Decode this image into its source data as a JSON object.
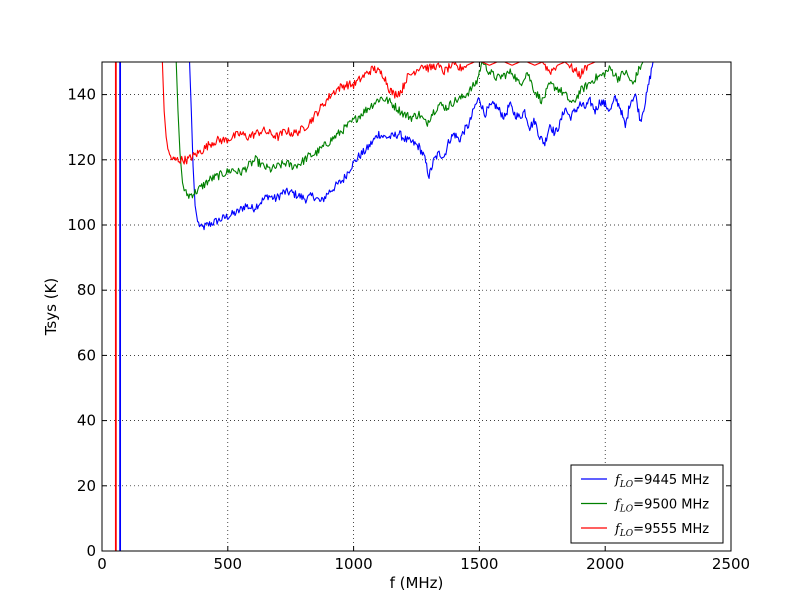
{
  "chart_data": {
    "type": "line",
    "title": "",
    "xlabel": "f (MHz)",
    "ylabel": "Tsys (K)",
    "xlim": [
      0,
      2500
    ],
    "ylim": [
      0,
      150
    ],
    "xticks": [
      0,
      500,
      1000,
      1500,
      2000,
      2500
    ],
    "yticks": [
      0,
      20,
      40,
      60,
      80,
      100,
      120,
      140
    ],
    "xtick_labels": [
      "0",
      "500",
      "1000",
      "1500",
      "2000",
      "2500"
    ],
    "ytick_labels": [
      "0",
      "20",
      "40",
      "60",
      "80",
      "100",
      "120",
      "140"
    ],
    "grid": true,
    "legend_position": "lower-right",
    "vertical_lines": [
      {
        "x": 55,
        "color": "#ff0000"
      },
      {
        "x": 72,
        "color": "#0000ff"
      }
    ],
    "series": [
      {
        "name": "=9445 MHz",
        "legend_prefix": "f",
        "legend_sub": "LO",
        "color": "#0000ff",
        "points": [
          [
            348,
            150
          ],
          [
            355,
            135
          ],
          [
            362,
            118
          ],
          [
            370,
            106
          ],
          [
            380,
            101
          ],
          [
            395,
            99
          ],
          [
            420,
            100
          ],
          [
            450,
            101
          ],
          [
            480,
            102
          ],
          [
            510,
            103
          ],
          [
            540,
            104
          ],
          [
            570,
            106
          ],
          [
            600,
            105
          ],
          [
            630,
            107
          ],
          [
            660,
            109
          ],
          [
            690,
            108
          ],
          [
            720,
            110
          ],
          [
            750,
            110
          ],
          [
            780,
            109
          ],
          [
            810,
            108
          ],
          [
            840,
            109
          ],
          [
            870,
            107
          ],
          [
            900,
            110
          ],
          [
            930,
            112
          ],
          [
            960,
            114
          ],
          [
            990,
            118
          ],
          [
            1020,
            121
          ],
          [
            1050,
            123
          ],
          [
            1080,
            126
          ],
          [
            1100,
            128
          ],
          [
            1120,
            127
          ],
          [
            1150,
            127
          ],
          [
            1180,
            128
          ],
          [
            1210,
            126
          ],
          [
            1240,
            125
          ],
          [
            1260,
            124
          ],
          [
            1280,
            121
          ],
          [
            1300,
            115
          ],
          [
            1320,
            120
          ],
          [
            1340,
            122
          ],
          [
            1360,
            121
          ],
          [
            1380,
            126
          ],
          [
            1400,
            128
          ],
          [
            1420,
            126
          ],
          [
            1440,
            129
          ],
          [
            1460,
            131
          ],
          [
            1480,
            136
          ],
          [
            1500,
            139
          ],
          [
            1520,
            134
          ],
          [
            1540,
            136
          ],
          [
            1560,
            137
          ],
          [
            1580,
            135
          ],
          [
            1600,
            133
          ],
          [
            1620,
            137
          ],
          [
            1640,
            134
          ],
          [
            1660,
            133
          ],
          [
            1680,
            135
          ],
          [
            1700,
            130
          ],
          [
            1720,
            132
          ],
          [
            1740,
            127
          ],
          [
            1760,
            125
          ],
          [
            1780,
            131
          ],
          [
            1800,
            128
          ],
          [
            1820,
            131
          ],
          [
            1840,
            136
          ],
          [
            1860,
            133
          ],
          [
            1880,
            135
          ],
          [
            1900,
            137
          ],
          [
            1920,
            136
          ],
          [
            1940,
            138
          ],
          [
            1960,
            135
          ],
          [
            1980,
            138
          ],
          [
            2000,
            137
          ],
          [
            2020,
            135
          ],
          [
            2040,
            139
          ],
          [
            2060,
            136
          ],
          [
            2080,
            130
          ],
          [
            2100,
            138
          ],
          [
            2120,
            140
          ],
          [
            2140,
            132
          ],
          [
            2160,
            138
          ],
          [
            2180,
            146
          ],
          [
            2190,
            150
          ]
        ]
      },
      {
        "name": "=9500 MHz",
        "legend_prefix": "f",
        "legend_sub": "LO",
        "color": "#008000",
        "points": [
          [
            295,
            150
          ],
          [
            302,
            135
          ],
          [
            310,
            122
          ],
          [
            320,
            113
          ],
          [
            330,
            110
          ],
          [
            345,
            109
          ],
          [
            370,
            110
          ],
          [
            400,
            112
          ],
          [
            430,
            114
          ],
          [
            460,
            115
          ],
          [
            490,
            116
          ],
          [
            520,
            117
          ],
          [
            550,
            116
          ],
          [
            580,
            118
          ],
          [
            610,
            120
          ],
          [
            640,
            118
          ],
          [
            670,
            117
          ],
          [
            700,
            118
          ],
          [
            730,
            119
          ],
          [
            760,
            118
          ],
          [
            790,
            119
          ],
          [
            820,
            121
          ],
          [
            850,
            122
          ],
          [
            880,
            124
          ],
          [
            910,
            126
          ],
          [
            940,
            128
          ],
          [
            970,
            130
          ],
          [
            1000,
            132
          ],
          [
            1030,
            134
          ],
          [
            1060,
            136
          ],
          [
            1090,
            138
          ],
          [
            1110,
            139
          ],
          [
            1140,
            138
          ],
          [
            1170,
            136
          ],
          [
            1200,
            134
          ],
          [
            1230,
            133
          ],
          [
            1260,
            134
          ],
          [
            1290,
            131
          ],
          [
            1310,
            134
          ],
          [
            1340,
            137
          ],
          [
            1370,
            136
          ],
          [
            1400,
            138
          ],
          [
            1430,
            139
          ],
          [
            1460,
            141
          ],
          [
            1490,
            144
          ],
          [
            1510,
            150
          ],
          [
            1540,
            147
          ],
          [
            1570,
            145
          ],
          [
            1600,
            146
          ],
          [
            1630,
            147
          ],
          [
            1660,
            143
          ],
          [
            1690,
            147
          ],
          [
            1720,
            141
          ],
          [
            1750,
            138
          ],
          [
            1780,
            143
          ],
          [
            1810,
            142
          ],
          [
            1840,
            140
          ],
          [
            1870,
            137
          ],
          [
            1900,
            141
          ],
          [
            1930,
            143
          ],
          [
            1960,
            145
          ],
          [
            1990,
            146
          ],
          [
            2020,
            148
          ],
          [
            2050,
            145
          ],
          [
            2080,
            147
          ],
          [
            2110,
            143
          ],
          [
            2130,
            147
          ],
          [
            2150,
            150
          ]
        ]
      },
      {
        "name": "=9555 MHz",
        "legend_prefix": "f",
        "legend_sub": "LO",
        "color": "#ff0000",
        "points": [
          [
            240,
            150
          ],
          [
            247,
            135
          ],
          [
            255,
            127
          ],
          [
            265,
            122
          ],
          [
            280,
            120
          ],
          [
            300,
            120
          ],
          [
            320,
            120
          ],
          [
            340,
            120
          ],
          [
            360,
            121
          ],
          [
            380,
            122
          ],
          [
            400,
            123
          ],
          [
            430,
            125
          ],
          [
            460,
            126
          ],
          [
            490,
            126
          ],
          [
            520,
            127
          ],
          [
            550,
            128
          ],
          [
            580,
            127
          ],
          [
            610,
            128
          ],
          [
            640,
            129
          ],
          [
            670,
            128
          ],
          [
            700,
            127
          ],
          [
            730,
            129
          ],
          [
            760,
            128
          ],
          [
            790,
            129
          ],
          [
            820,
            131
          ],
          [
            850,
            134
          ],
          [
            880,
            137
          ],
          [
            910,
            140
          ],
          [
            940,
            142
          ],
          [
            970,
            143
          ],
          [
            1000,
            143
          ],
          [
            1030,
            145
          ],
          [
            1060,
            147
          ],
          [
            1080,
            148
          ],
          [
            1100,
            147
          ],
          [
            1120,
            146
          ],
          [
            1140,
            142
          ],
          [
            1160,
            140
          ],
          [
            1190,
            141
          ],
          [
            1210,
            145
          ],
          [
            1240,
            147
          ],
          [
            1270,
            149
          ],
          [
            1300,
            148
          ],
          [
            1330,
            149
          ],
          [
            1360,
            147
          ],
          [
            1390,
            149
          ],
          [
            1420,
            148
          ],
          [
            1450,
            149
          ],
          [
            1480,
            150
          ],
          [
            1510,
            150
          ],
          [
            1540,
            149
          ],
          [
            1570,
            150
          ],
          [
            1600,
            150
          ],
          [
            1630,
            149
          ],
          [
            1660,
            150
          ],
          [
            1690,
            150
          ],
          [
            1720,
            149
          ],
          [
            1750,
            150
          ],
          [
            1780,
            147
          ],
          [
            1810,
            149
          ],
          [
            1840,
            150
          ],
          [
            1870,
            148
          ],
          [
            1900,
            146
          ],
          [
            1930,
            149
          ],
          [
            1960,
            150
          ],
          [
            1990,
            150
          ],
          [
            2010,
            150
          ]
        ]
      }
    ]
  }
}
